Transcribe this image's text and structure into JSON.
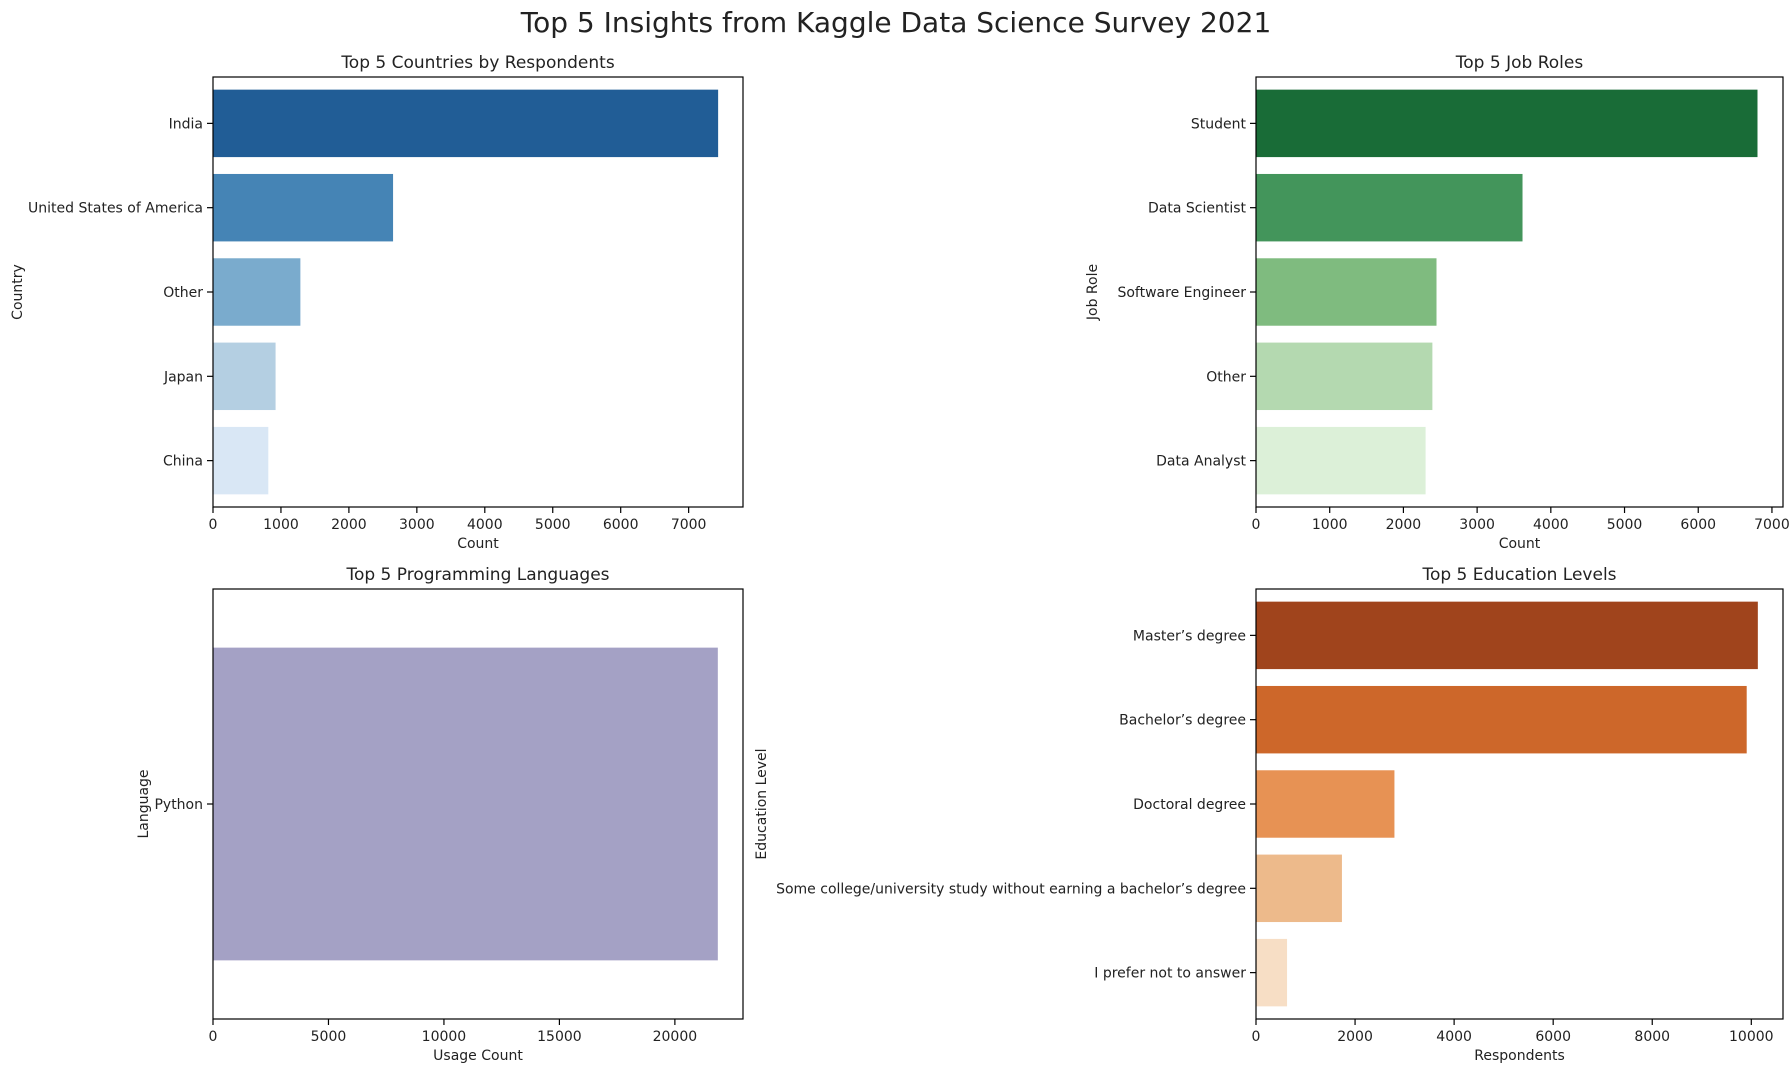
{
  "suptitle": "Top 5 Insights from Kaggle Data Science Survey 2021",
  "chart_data": [
    {
      "type": "bar",
      "orientation": "horizontal",
      "title": "Top 5 Countries by Respondents",
      "xlabel": "Count",
      "ylabel": "Country",
      "categories": [
        "India",
        "United States of America",
        "Other",
        "Japan",
        "China"
      ],
      "values": [
        7434,
        2650,
        1286,
        921,
        814
      ],
      "xlim": [
        0,
        7800
      ],
      "xticks": [
        0,
        1000,
        2000,
        3000,
        4000,
        5000,
        6000,
        7000
      ],
      "colors": [
        "#215d96",
        "#4584b5",
        "#7aabcd",
        "#b4cfe2",
        "#d9e7f5"
      ],
      "grid": false,
      "legend": "none"
    },
    {
      "type": "bar",
      "orientation": "horizontal",
      "title": "Top 5 Job Roles",
      "xlabel": "Count",
      "ylabel": "Job Role",
      "categories": [
        "Student",
        "Data Scientist",
        "Software Engineer",
        "Other",
        "Data Analyst"
      ],
      "values": [
        6804,
        3616,
        2449,
        2393,
        2301
      ],
      "xlim": [
        0,
        7150
      ],
      "xticks": [
        0,
        1000,
        2000,
        3000,
        4000,
        5000,
        6000,
        7000
      ],
      "colors": [
        "#196c37",
        "#43955b",
        "#7fbb7f",
        "#b4d9b0",
        "#dcf0d8"
      ],
      "grid": false,
      "legend": "none"
    },
    {
      "type": "bar",
      "orientation": "horizontal",
      "title": "Top 5 Programming Languages",
      "xlabel": "Usage Count",
      "ylabel": "Language",
      "categories": [
        "Python"
      ],
      "values": [
        21860
      ],
      "xlim": [
        0,
        22950
      ],
      "xticks": [
        0,
        5000,
        10000,
        15000,
        20000
      ],
      "colors": [
        "#a4a1c5"
      ],
      "grid": false,
      "legend": "none"
    },
    {
      "type": "bar",
      "orientation": "horizontal",
      "title": "Top 5 Education Levels",
      "xlabel": "Respondents",
      "ylabel": "Education Level",
      "categories": [
        "Master’s degree",
        "Bachelor’s degree",
        "Doctoral degree",
        "Some college/university study without earning a bachelor’s degree",
        "I prefer not to answer"
      ],
      "values": [
        10132,
        9907,
        2795,
        1735,
        627
      ],
      "xlim": [
        0,
        10640
      ],
      "xticks": [
        0,
        2000,
        4000,
        6000,
        8000,
        10000
      ],
      "colors": [
        "#a0441c",
        "#cd672a",
        "#e79254",
        "#edba8b",
        "#f7dec5"
      ],
      "grid": false,
      "legend": "none"
    }
  ]
}
